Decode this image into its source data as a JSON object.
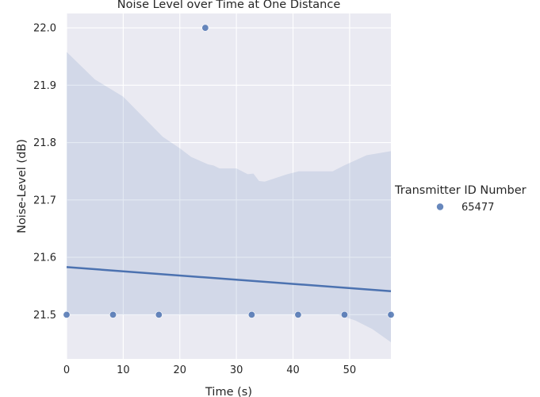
{
  "chart_data": {
    "type": "scatter",
    "title": "Noise Level over Time at One Distance",
    "xlabel": "Time (s)",
    "ylabel": "Noise-Level (dB)",
    "xlim": [
      0,
      57.3
    ],
    "ylim": [
      21.423,
      22.025
    ],
    "xticks": [
      0,
      10,
      20,
      30,
      40,
      50
    ],
    "yticks": [
      21.5,
      21.6,
      21.7,
      21.8,
      21.9,
      22.0
    ],
    "xtick_labels": [
      "0",
      "10",
      "20",
      "30",
      "40",
      "50"
    ],
    "ytick_labels": [
      "21.5",
      "21.6",
      "21.7",
      "21.8",
      "21.9",
      "22.0"
    ],
    "grid": true,
    "legend": {
      "title": "Transmitter ID Number",
      "placement": "right",
      "entries": [
        "65477"
      ]
    },
    "series": [
      {
        "name": "65477",
        "color": "#4c72b0",
        "points": [
          {
            "x": 0.0,
            "y": 21.5
          },
          {
            "x": 8.2,
            "y": 21.5
          },
          {
            "x": 16.3,
            "y": 21.5
          },
          {
            "x": 24.5,
            "y": 22.0
          },
          {
            "x": 32.7,
            "y": 21.5
          },
          {
            "x": 40.9,
            "y": 21.5
          },
          {
            "x": 49.1,
            "y": 21.5
          },
          {
            "x": 57.3,
            "y": 21.5
          }
        ]
      }
    ],
    "regression": {
      "color": "#4c72b0",
      "points": [
        {
          "x": 0.0,
          "y": 21.583
        },
        {
          "x": 57.3,
          "y": 21.541
        }
      ],
      "confidence_band": {
        "upper": [
          {
            "x": 0.0,
            "y": 21.958
          },
          {
            "x": 5.0,
            "y": 21.91
          },
          {
            "x": 10.0,
            "y": 21.88
          },
          {
            "x": 13.0,
            "y": 21.85
          },
          {
            "x": 17.0,
            "y": 21.81
          },
          {
            "x": 20.0,
            "y": 21.79
          },
          {
            "x": 22.0,
            "y": 21.775
          },
          {
            "x": 25.0,
            "y": 21.762
          },
          {
            "x": 26.0,
            "y": 21.76
          },
          {
            "x": 27.0,
            "y": 21.755
          },
          {
            "x": 30.0,
            "y": 21.755
          },
          {
            "x": 32.0,
            "y": 21.745
          },
          {
            "x": 33.0,
            "y": 21.746
          },
          {
            "x": 34.0,
            "y": 21.733
          },
          {
            "x": 35.0,
            "y": 21.732
          },
          {
            "x": 39.0,
            "y": 21.745
          },
          {
            "x": 41.0,
            "y": 21.75
          },
          {
            "x": 47.0,
            "y": 21.75
          },
          {
            "x": 49.0,
            "y": 21.76
          },
          {
            "x": 53.0,
            "y": 21.778
          },
          {
            "x": 57.3,
            "y": 21.785
          }
        ],
        "lower": [
          {
            "x": 0.0,
            "y": 21.5
          },
          {
            "x": 48.0,
            "y": 21.5
          },
          {
            "x": 51.0,
            "y": 21.49
          },
          {
            "x": 54.0,
            "y": 21.475
          },
          {
            "x": 57.3,
            "y": 21.452
          }
        ]
      }
    }
  }
}
